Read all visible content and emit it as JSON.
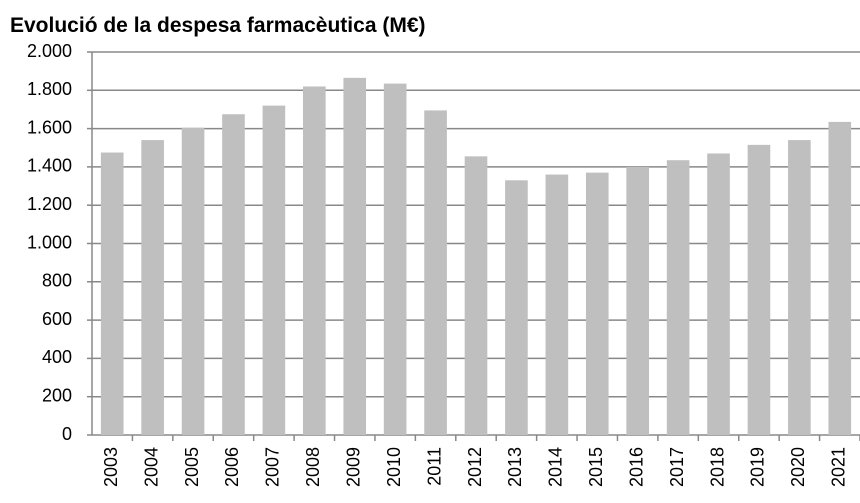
{
  "chart_data": {
    "type": "bar",
    "title": "Evolució de la despesa farmacèutica (M€)",
    "categories": [
      "2003",
      "2004",
      "2005",
      "2006",
      "2007",
      "2008",
      "2009",
      "2010",
      "2011",
      "2012",
      "2013",
      "2014",
      "2015",
      "2016",
      "2017",
      "2018",
      "2019",
      "2020",
      "2021"
    ],
    "values": [
      1475,
      1540,
      1605,
      1675,
      1720,
      1820,
      1865,
      1835,
      1695,
      1455,
      1330,
      1360,
      1370,
      1400,
      1435,
      1470,
      1515,
      1540,
      1635
    ],
    "color": "#bfbfbf",
    "ylim": [
      0,
      2000
    ],
    "yticks": [
      0,
      200,
      400,
      600,
      800,
      {
        "value": 1000,
        "label": "1.000"
      },
      {
        "value": 1200,
        "label": "1.200"
      },
      {
        "value": 1400,
        "label": "1.400"
      },
      {
        "value": 1600,
        "label": "1.600"
      },
      {
        "value": 1800,
        "label": "1.800"
      },
      {
        "value": 2000,
        "label": "2.000"
      }
    ],
    "grid": true
  }
}
